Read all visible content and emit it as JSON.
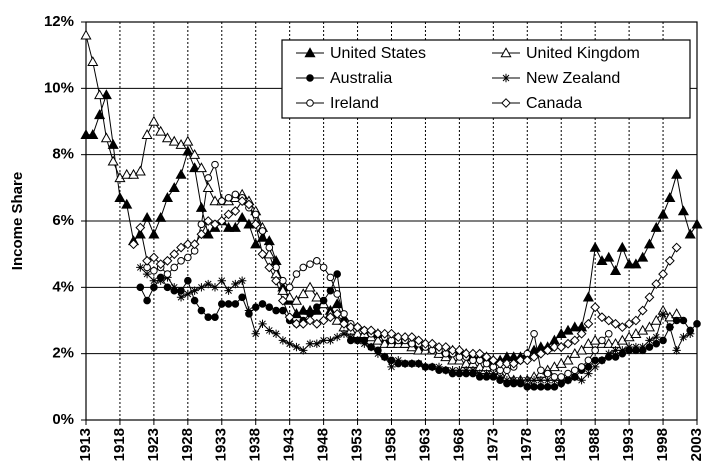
{
  "chart_data": {
    "type": "line",
    "y_label": "Income Share",
    "xlim": [
      1913,
      2003
    ],
    "xticks": [
      1913,
      1918,
      1923,
      1928,
      1933,
      1938,
      1943,
      1948,
      1953,
      1958,
      1963,
      1968,
      1973,
      1978,
      1983,
      1988,
      1993,
      1998,
      2003
    ],
    "ylim": [
      0,
      12
    ],
    "yticks": [
      {
        "value": 0,
        "label": "0%"
      },
      {
        "value": 2,
        "label": "2%"
      },
      {
        "value": 4,
        "label": "4%"
      },
      {
        "value": 6,
        "label": "6%"
      },
      {
        "value": 8,
        "label": "8%"
      },
      {
        "value": 10,
        "label": "10%"
      },
      {
        "value": 12,
        "label": "12%"
      }
    ],
    "grid": true,
    "legend": "upper right",
    "series": [
      {
        "name": "United States",
        "color": "#000000",
        "marker": "triangle",
        "x": [
          1913,
          1914,
          1915,
          1916,
          1917,
          1918,
          1919,
          1920,
          1921,
          1922,
          1923,
          1924,
          1925,
          1926,
          1927,
          1928,
          1929,
          1930,
          1931,
          1932,
          1933,
          1934,
          1935,
          1936,
          1937,
          1938,
          1939,
          1940,
          1941,
          1942,
          1943,
          1944,
          1945,
          1946,
          1947,
          1948,
          1949,
          1950,
          1951,
          1952,
          1953,
          1954,
          1955,
          1956,
          1957,
          1958,
          1959,
          1960,
          1961,
          1962,
          1963,
          1964,
          1965,
          1966,
          1967,
          1968,
          1969,
          1970,
          1971,
          1972,
          1973,
          1974,
          1975,
          1976,
          1977,
          1978,
          1979,
          1980,
          1981,
          1982,
          1983,
          1984,
          1985,
          1986,
          1987,
          1988,
          1989,
          1990,
          1991,
          1992,
          1993,
          1994,
          1995,
          1996,
          1997,
          1998,
          1999,
          2000,
          2001,
          2002,
          2003
        ],
        "values": [
          8.6,
          8.6,
          9.2,
          9.8,
          8.3,
          6.7,
          6.5,
          5.4,
          5.6,
          6.1,
          5.6,
          6.1,
          6.7,
          7.0,
          7.4,
          8.1,
          7.6,
          6.4,
          5.6,
          5.8,
          6.0,
          5.8,
          5.8,
          6.1,
          5.9,
          5.3,
          5.5,
          5.4,
          4.8,
          4.0,
          3.6,
          3.2,
          3.3,
          3.3,
          3.3,
          3.5,
          3.3,
          3.5,
          3.0,
          2.7,
          2.5,
          2.6,
          2.6,
          2.6,
          2.4,
          2.3,
          2.4,
          2.3,
          2.3,
          2.2,
          2.1,
          2.1,
          2.1,
          2.0,
          2.1,
          2.1,
          2.0,
          1.9,
          1.9,
          1.9,
          1.8,
          1.8,
          1.9,
          1.9,
          1.9,
          2.0,
          2.1,
          2.2,
          2.2,
          2.4,
          2.6,
          2.7,
          2.8,
          2.8,
          3.7,
          5.2,
          4.8,
          4.9,
          4.5,
          5.2,
          4.7,
          4.7,
          4.9,
          5.3,
          5.8,
          6.2,
          6.7,
          7.4,
          6.3,
          5.6,
          5.9
        ]
      },
      {
        "name": "United Kingdom",
        "color": "#000000",
        "marker": "triangle-open",
        "x": [
          1913,
          1914,
          1915,
          1916,
          1917,
          1918,
          1919,
          1920,
          1921,
          1922,
          1923,
          1924,
          1925,
          1926,
          1927,
          1928,
          1929,
          1930,
          1931,
          1932,
          1933,
          1934,
          1935,
          1936,
          1937,
          1938,
          1939,
          1940,
          1941,
          1942,
          1943,
          1944,
          1945,
          1946,
          1947,
          1948,
          1949,
          1950,
          1951,
          1952,
          1953,
          1954,
          1955,
          1956,
          1957,
          1958,
          1959,
          1960,
          1961,
          1962,
          1963,
          1964,
          1965,
          1966,
          1967,
          1968,
          1969,
          1970,
          1971,
          1972,
          1973,
          1974,
          1975,
          1976,
          1977,
          1978,
          1979,
          1980,
          1981,
          1982,
          1983,
          1984,
          1985,
          1986,
          1987,
          1988,
          1989,
          1990,
          1991,
          1992,
          1993,
          1994,
          1995,
          1996,
          1997,
          1998,
          1999,
          2000
        ],
        "values": [
          11.6,
          10.8,
          9.8,
          8.5,
          7.8,
          7.3,
          7.4,
          7.4,
          7.5,
          8.6,
          9.0,
          8.7,
          8.5,
          8.4,
          8.3,
          8.4,
          8.0,
          7.6,
          7.0,
          6.6,
          6.6,
          6.6,
          6.7,
          6.8,
          6.6,
          6.3,
          5.8,
          5.0,
          4.4,
          3.9,
          3.7,
          3.6,
          3.8,
          4.0,
          3.7,
          3.5,
          3.2,
          3.0,
          2.8,
          2.7,
          2.6,
          2.6,
          2.5,
          2.4,
          2.3,
          2.3,
          2.3,
          2.3,
          2.2,
          2.1,
          2.1,
          2.1,
          2.0,
          1.9,
          1.8,
          1.8,
          1.7,
          1.7,
          1.6,
          1.6,
          1.5,
          1.4,
          1.3,
          1.2,
          1.2,
          1.2,
          1.3,
          1.4,
          1.5,
          1.6,
          1.7,
          1.8,
          2.0,
          2.1,
          2.3,
          2.4,
          2.3,
          2.3,
          2.3,
          2.4,
          2.5,
          2.6,
          2.7,
          2.8,
          3.0,
          3.3,
          3.1,
          3.2
        ]
      },
      {
        "name": "Australia",
        "color": "#000000",
        "marker": "circle",
        "x": [
          1921,
          1922,
          1923,
          1924,
          1925,
          1926,
          1927,
          1928,
          1929,
          1930,
          1931,
          1932,
          1933,
          1934,
          1935,
          1936,
          1937,
          1938,
          1939,
          1940,
          1941,
          1942,
          1943,
          1944,
          1945,
          1946,
          1947,
          1948,
          1949,
          1950,
          1951,
          1952,
          1953,
          1954,
          1955,
          1956,
          1957,
          1958,
          1959,
          1960,
          1961,
          1962,
          1963,
          1964,
          1965,
          1966,
          1967,
          1968,
          1969,
          1970,
          1971,
          1972,
          1973,
          1974,
          1975,
          1976,
          1977,
          1978,
          1979,
          1980,
          1981,
          1982,
          1983,
          1984,
          1985,
          1986,
          1987,
          1988,
          1989,
          1990,
          1991,
          1992,
          1993,
          1994,
          1995,
          1996,
          1997,
          1998,
          1999,
          2000,
          2001,
          2002,
          2003
        ],
        "values": [
          4.0,
          3.6,
          4.0,
          4.3,
          4.0,
          3.9,
          3.9,
          4.2,
          3.6,
          3.3,
          3.1,
          3.1,
          3.5,
          3.5,
          3.5,
          3.7,
          3.2,
          3.4,
          3.5,
          3.4,
          3.3,
          3.3,
          3.0,
          2.9,
          3.0,
          3.2,
          3.4,
          3.6,
          3.9,
          4.4,
          3.0,
          2.4,
          2.4,
          2.4,
          2.2,
          2.1,
          1.9,
          1.8,
          1.7,
          1.7,
          1.7,
          1.7,
          1.6,
          1.6,
          1.5,
          1.5,
          1.4,
          1.4,
          1.4,
          1.4,
          1.3,
          1.3,
          1.3,
          1.2,
          1.1,
          1.1,
          1.1,
          1.0,
          1.0,
          1.0,
          1.0,
          1.0,
          1.1,
          1.2,
          1.3,
          1.5,
          1.6,
          1.8,
          1.8,
          1.9,
          1.9,
          2.0,
          2.1,
          2.1,
          2.1,
          2.2,
          2.3,
          2.4,
          2.8,
          3.0,
          3.0,
          2.7,
          2.9
        ]
      },
      {
        "name": "New Zealand",
        "color": "#000000",
        "marker": "star",
        "x": [
          1921,
          1922,
          1923,
          1924,
          1925,
          1926,
          1927,
          1928,
          1929,
          1930,
          1931,
          1932,
          1933,
          1934,
          1935,
          1936,
          1937,
          1938,
          1939,
          1940,
          1941,
          1942,
          1943,
          1944,
          1945,
          1946,
          1947,
          1948,
          1949,
          1950,
          1951,
          1952,
          1953,
          1954,
          1955,
          1956,
          1957,
          1958,
          1959,
          1960,
          1961,
          1962,
          1963,
          1964,
          1965,
          1966,
          1967,
          1968,
          1969,
          1970,
          1971,
          1972,
          1973,
          1974,
          1975,
          1976,
          1977,
          1978,
          1979,
          1980,
          1981,
          1982,
          1983,
          1984,
          1985,
          1986,
          1987,
          1988,
          1989,
          1990,
          1991,
          1992,
          1993,
          1994,
          1995,
          1996,
          1997,
          1998,
          1999,
          2000,
          2001,
          2002
        ],
        "values": [
          4.6,
          4.4,
          4.2,
          4.2,
          4.3,
          4.0,
          3.7,
          3.8,
          3.9,
          4.0,
          4.1,
          4.0,
          4.2,
          3.9,
          4.1,
          4.2,
          3.3,
          2.6,
          2.9,
          2.7,
          2.6,
          2.4,
          2.3,
          2.2,
          2.1,
          2.3,
          2.3,
          2.4,
          2.4,
          2.5,
          2.6,
          2.5,
          2.4,
          2.3,
          2.2,
          2.0,
          1.9,
          1.6,
          1.8,
          1.7,
          1.7,
          1.7,
          1.6,
          1.6,
          1.6,
          1.5,
          1.5,
          1.5,
          1.5,
          1.5,
          1.4,
          1.4,
          1.4,
          1.3,
          1.2,
          1.2,
          1.2,
          1.2,
          1.2,
          1.2,
          1.2,
          1.2,
          1.2,
          1.2,
          1.3,
          1.2,
          1.4,
          1.6,
          1.8,
          2.0,
          2.1,
          2.1,
          2.2,
          2.2,
          2.2,
          2.4,
          2.5,
          3.2,
          2.8,
          2.1,
          2.5,
          2.6
        ]
      },
      {
        "name": "Ireland",
        "color": "#000000",
        "marker": "circle-open",
        "x": [
          1922,
          1923,
          1924,
          1925,
          1926,
          1927,
          1928,
          1929,
          1930,
          1931,
          1932,
          1933,
          1934,
          1935,
          1936,
          1937,
          1938,
          1939,
          1940,
          1941,
          1942,
          1943,
          1944,
          1945,
          1946,
          1947,
          1948,
          1949,
          1950,
          1951,
          1952,
          1953,
          1954,
          1955,
          1956,
          1957,
          1958,
          1959,
          1960,
          1961,
          1962,
          1963,
          1964,
          1965,
          1966,
          1967,
          1968,
          1969,
          1970,
          1971,
          1972,
          1973,
          1974,
          1975,
          1976,
          1977,
          1978,
          1979,
          1980,
          1981,
          1982,
          1983,
          1984,
          1985,
          1986,
          1987,
          1988,
          1989,
          1990
        ],
        "values": [
          4.6,
          4.5,
          4.6,
          4.4,
          4.6,
          4.8,
          4.9,
          5.1,
          5.9,
          7.3,
          7.7,
          6.6,
          6.7,
          6.8,
          6.7,
          6.4,
          6.2,
          5.7,
          5.2,
          4.6,
          4.2,
          4.0,
          4.4,
          4.6,
          4.7,
          4.8,
          4.6,
          4.3,
          3.8,
          3.2,
          2.9,
          2.8,
          2.7,
          2.6,
          2.6,
          2.5,
          2.4,
          2.4,
          2.4,
          2.3,
          2.3,
          2.2,
          2.1,
          2.1,
          2.0,
          2.0,
          1.9,
          1.9,
          1.8,
          1.8,
          1.7,
          1.6,
          1.5,
          1.5,
          1.6,
          1.8,
          2.0,
          2.6,
          1.5,
          1.4,
          1.3,
          1.3,
          1.4,
          1.5,
          1.6,
          1.8,
          2.1,
          2.4,
          2.6
        ]
      },
      {
        "name": "Canada",
        "color": "#000000",
        "marker": "diamond-open",
        "x": [
          1920,
          1921,
          1922,
          1923,
          1924,
          1925,
          1926,
          1927,
          1928,
          1929,
          1930,
          1931,
          1932,
          1933,
          1934,
          1935,
          1936,
          1937,
          1938,
          1939,
          1940,
          1941,
          1942,
          1943,
          1944,
          1945,
          1946,
          1947,
          1948,
          1949,
          1950,
          1951,
          1952,
          1953,
          1954,
          1955,
          1956,
          1957,
          1958,
          1959,
          1960,
          1961,
          1962,
          1963,
          1964,
          1965,
          1966,
          1967,
          1968,
          1969,
          1970,
          1971,
          1972,
          1973,
          1974,
          1975,
          1976,
          1977,
          1978,
          1979,
          1980,
          1981,
          1982,
          1983,
          1984,
          1985,
          1986,
          1987,
          1988,
          1989,
          1990,
          1991,
          1992,
          1993,
          1994,
          1995,
          1996,
          1997,
          1998,
          1999,
          2000
        ],
        "values": [
          5.3,
          5.8,
          4.8,
          4.9,
          4.7,
          4.8,
          5.0,
          5.2,
          5.3,
          5.3,
          5.6,
          6.0,
          5.9,
          6.0,
          6.2,
          6.3,
          6.6,
          6.5,
          5.9,
          5.0,
          4.6,
          4.2,
          3.6,
          3.1,
          2.9,
          2.9,
          3.0,
          2.9,
          3.0,
          3.1,
          3.2,
          2.9,
          2.8,
          2.8,
          2.7,
          2.7,
          2.6,
          2.6,
          2.6,
          2.5,
          2.5,
          2.5,
          2.4,
          2.3,
          2.3,
          2.2,
          2.2,
          2.1,
          2.1,
          2.0,
          2.0,
          2.0,
          1.9,
          1.8,
          1.7,
          1.7,
          1.7,
          1.8,
          1.8,
          1.9,
          2.0,
          2.1,
          2.2,
          2.2,
          2.3,
          2.4,
          2.6,
          2.9,
          3.4,
          3.1,
          3.0,
          2.9,
          2.8,
          2.9,
          3.0,
          3.3,
          3.7,
          4.1,
          4.4,
          4.8,
          5.2
        ]
      }
    ]
  }
}
